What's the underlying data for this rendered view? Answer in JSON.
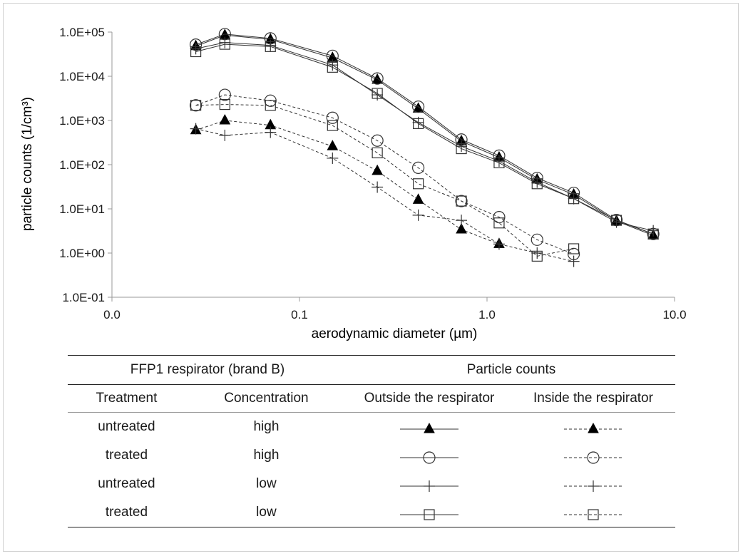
{
  "chart_data": {
    "type": "scatter",
    "xlabel": "aerodynamic diameter (µm)",
    "ylabel": "particle counts (1/cm³)",
    "xscale": "log",
    "yscale": "log",
    "xlim": [
      0.01,
      10
    ],
    "ylim": [
      0.1,
      100000
    ],
    "x_tick_labels": [
      "0.0",
      "0.1",
      "1.0",
      "10.0"
    ],
    "y_tick_labels": [
      "1.0E-01",
      "1.0E+00",
      "1.0E+01",
      "1.0E+02",
      "1.0E+03",
      "1.0E+04",
      "1.0E+05"
    ],
    "series": [
      {
        "marker": "triangle",
        "line": "solid",
        "x": [
          0.028,
          0.04,
          0.07,
          0.15,
          0.26,
          0.43,
          0.73,
          1.16,
          1.85,
          2.9,
          4.9,
          7.7
        ],
        "values": [
          48000,
          85000,
          68000,
          26000,
          8300,
          1850,
          340,
          145,
          46,
          21,
          5.3,
          2.5
        ]
      },
      {
        "marker": "triangle",
        "line": "dashed",
        "x": [
          0.028,
          0.04,
          0.07,
          0.15,
          0.26,
          0.43,
          0.73,
          1.16
        ],
        "values": [
          600,
          1000,
          780,
          260,
          72,
          16,
          3.4,
          1.6
        ]
      },
      {
        "marker": "circle",
        "line": "solid",
        "x": [
          0.028,
          0.04,
          0.07,
          0.15,
          0.26,
          0.43,
          0.73,
          1.16,
          1.85,
          2.9,
          4.9,
          7.7
        ],
        "values": [
          52000,
          90000,
          72000,
          29000,
          8900,
          2050,
          370,
          160,
          50,
          23,
          5.6,
          2.7
        ]
      },
      {
        "marker": "circle",
        "line": "dashed",
        "x": [
          0.028,
          0.04,
          0.07,
          0.15,
          0.26,
          0.43,
          0.73,
          1.16,
          1.85,
          2.9
        ],
        "values": [
          2200,
          3800,
          2800,
          1150,
          350,
          85,
          15,
          6.5,
          2.0,
          0.95
        ]
      },
      {
        "marker": "plus",
        "line": "solid",
        "x": [
          0.028,
          0.04,
          0.07,
          0.15,
          0.26,
          0.43,
          0.73,
          1.16,
          1.85,
          2.9,
          4.9,
          7.7
        ],
        "values": [
          42000,
          58000,
          50000,
          18000,
          3800,
          900,
          260,
          120,
          40,
          17,
          5.0,
          3.2
        ]
      },
      {
        "marker": "plus",
        "line": "dashed",
        "x": [
          0.028,
          0.04,
          0.07,
          0.15,
          0.26,
          0.43,
          0.73,
          1.16,
          1.85,
          2.9
        ],
        "values": [
          650,
          460,
          540,
          140,
          31,
          7.2,
          5.5,
          1.6,
          1.0,
          0.65
        ]
      },
      {
        "marker": "square",
        "line": "solid",
        "x": [
          0.028,
          0.04,
          0.07,
          0.15,
          0.26,
          0.43,
          0.73,
          1.16,
          1.85,
          2.9,
          4.9,
          7.7
        ],
        "values": [
          36000,
          53000,
          47000,
          16000,
          4100,
          850,
          230,
          110,
          37,
          17,
          5.5,
          2.7
        ]
      },
      {
        "marker": "square",
        "line": "dashed",
        "x": [
          0.028,
          0.04,
          0.07,
          0.15,
          0.26,
          0.43,
          0.73,
          1.16,
          1.85,
          2.9
        ],
        "values": [
          2200,
          2300,
          2200,
          770,
          185,
          37,
          15,
          4.8,
          0.85,
          1.25
        ]
      }
    ]
  },
  "legend_table": {
    "group_left": "FFP1 respirator (brand B)",
    "group_right": "Particle counts",
    "headers": [
      "Treatment",
      "Concentration",
      "Outside the respirator",
      "Inside the respirator"
    ],
    "rows": [
      {
        "treatment": "untreated",
        "concentration": "high",
        "marker": "triangle"
      },
      {
        "treatment": "treated",
        "concentration": "high",
        "marker": "circle"
      },
      {
        "treatment": "untreated",
        "concentration": "low",
        "marker": "plus"
      },
      {
        "treatment": "treated",
        "concentration": "low",
        "marker": "square"
      }
    ]
  },
  "colors": {
    "line": "#333333",
    "triangle_fill": "#000000",
    "axis": "#999999"
  }
}
